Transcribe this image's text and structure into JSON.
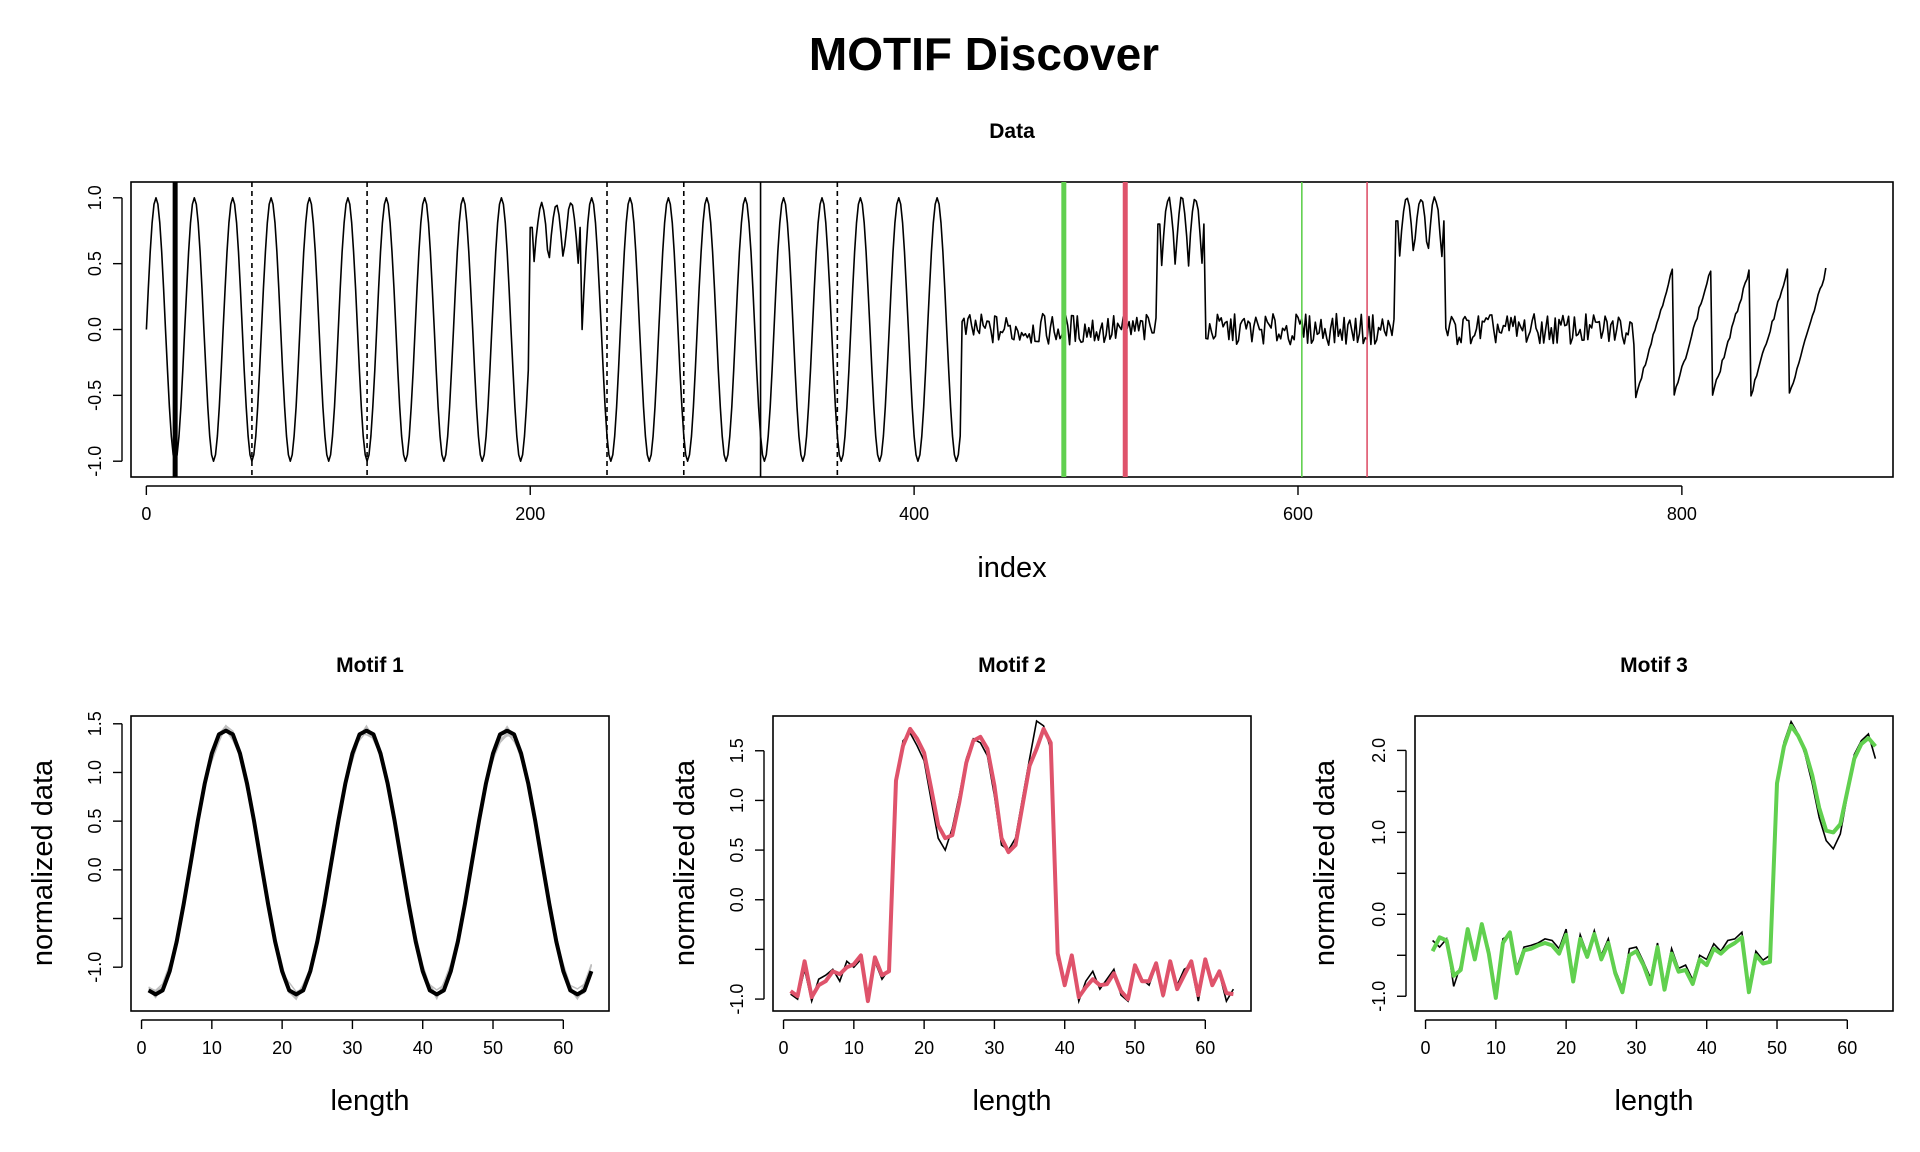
{
  "figure": {
    "title": "MOTIF Discover"
  },
  "colors": {
    "data_line": "#000000",
    "motif1": "#000000",
    "motif2": "#DF536B",
    "motif3": "#61D04F",
    "motif1_members": "#BEBEBE"
  },
  "chart_data": [
    {
      "id": "data",
      "type": "line",
      "title": "Data",
      "xlabel": "index",
      "ylabel": "",
      "xlim": [
        -8,
        910
      ],
      "ylim": [
        -1.12,
        1.12
      ],
      "xticks": [
        0,
        200,
        400,
        600,
        800
      ],
      "yticks": [
        -1.0,
        -0.5,
        0.0,
        0.5,
        1.0
      ],
      "xtick_labels": [
        "0",
        "200",
        "400",
        "600",
        "800"
      ],
      "ytick_labels": [
        "-1.0",
        "-0.5",
        "0.0",
        "0.5",
        "1.0"
      ],
      "grid": false,
      "n_points": 876,
      "segments": [
        {
          "shape": "sine",
          "from": 0,
          "to": 200,
          "period": 20,
          "amplitude": 1.0
        },
        {
          "shape": "double_bump",
          "from": 200,
          "to": 227,
          "low": 0.5,
          "high": 0.95
        },
        {
          "shape": "sine",
          "from": 227,
          "to": 425,
          "period": 20,
          "amplitude": 1.0
        },
        {
          "shape": "noise",
          "from": 425,
          "to": 527,
          "level": 0.0,
          "spread": 0.12
        },
        {
          "shape": "double_bump",
          "from": 527,
          "to": 552,
          "low": 0.5,
          "high": 1.0
        },
        {
          "shape": "noise",
          "from": 552,
          "to": 651,
          "level": 0.0,
          "spread": 0.12
        },
        {
          "shape": "double_bump",
          "from": 651,
          "to": 677,
          "low": 0.55,
          "high": 1.0
        },
        {
          "shape": "noise",
          "from": 677,
          "to": 776,
          "level": 0.0,
          "spread": 0.12
        },
        {
          "shape": "sawtooth",
          "from": 776,
          "to": 876,
          "period": 20,
          "min": -0.5,
          "max": 0.5
        }
      ],
      "markers": [
        {
          "x": 15,
          "style": "solid",
          "weight": "thick",
          "color_key": "motif1"
        },
        {
          "x": 55,
          "style": "dashed",
          "weight": "thin",
          "color_key": "motif1"
        },
        {
          "x": 115,
          "style": "dashed",
          "weight": "thin",
          "color_key": "motif1"
        },
        {
          "x": 240,
          "style": "dashed",
          "weight": "thin",
          "color_key": "motif1"
        },
        {
          "x": 280,
          "style": "dashed",
          "weight": "thin",
          "color_key": "motif1"
        },
        {
          "x": 320,
          "style": "solid",
          "weight": "thin",
          "color_key": "motif1"
        },
        {
          "x": 360,
          "style": "dashed",
          "weight": "thin",
          "color_key": "motif1"
        },
        {
          "x": 478,
          "style": "solid",
          "weight": "thick",
          "color_key": "motif3"
        },
        {
          "x": 510,
          "style": "solid",
          "weight": "thick",
          "color_key": "motif2"
        },
        {
          "x": 602,
          "style": "solid",
          "weight": "thin",
          "color_key": "motif3"
        },
        {
          "x": 636,
          "style": "solid",
          "weight": "thin",
          "color_key": "motif2"
        }
      ]
    },
    {
      "id": "motif1",
      "type": "line",
      "title": "Motif 1",
      "xlabel": "length",
      "ylabel": "normalized data",
      "xlim": [
        -1.5,
        66.5
      ],
      "ylim": [
        -1.45,
        1.58
      ],
      "xticks": [
        0,
        10,
        20,
        30,
        40,
        50,
        60
      ],
      "yticks": [
        -1.0,
        0.0,
        0.5,
        1.0,
        1.5
      ],
      "xtick_labels": [
        "0",
        "10",
        "20",
        "30",
        "40",
        "50",
        "60"
      ],
      "ytick_labels": [
        "-1.0",
        "0.0",
        "0.5",
        "1.0",
        "1.5"
      ],
      "extra_yticks_unlabeled": [
        -0.5
      ],
      "grid": false,
      "n_points": 64,
      "period": 20,
      "peak": 1.43,
      "trough": -1.28,
      "color_key": "motif1"
    },
    {
      "id": "motif2",
      "type": "line",
      "title": "Motif 2",
      "xlabel": "length",
      "ylabel": "normalized data",
      "xlim": [
        -1.5,
        66.5
      ],
      "ylim": [
        -1.12,
        1.85
      ],
      "xticks": [
        0,
        10,
        20,
        30,
        40,
        50,
        60
      ],
      "yticks": [
        -1.0,
        0.0,
        0.5,
        1.0,
        1.5
      ],
      "xtick_labels": [
        "0",
        "10",
        "20",
        "30",
        "40",
        "50",
        "60"
      ],
      "ytick_labels": [
        "-1.0",
        "0.0",
        "0.5",
        "1.0",
        "1.5"
      ],
      "extra_yticks_unlabeled": [
        -0.5
      ],
      "grid": false,
      "color_key": "motif2",
      "series": [
        {
          "role": "center",
          "color_key": "motif2",
          "values": [
            -0.92,
            -0.97,
            -0.62,
            -0.98,
            -0.86,
            -0.82,
            -0.72,
            -0.75,
            -0.68,
            -0.65,
            -0.56,
            -1.02,
            -0.58,
            -0.76,
            -0.72,
            1.2,
            1.55,
            1.72,
            1.62,
            1.48,
            1.12,
            0.75,
            0.62,
            0.65,
            0.98,
            1.38,
            1.6,
            1.64,
            1.52,
            1.15,
            0.62,
            0.48,
            0.55,
            0.95,
            1.35,
            1.52,
            1.72,
            1.58,
            -0.54,
            -0.86,
            -0.56,
            -0.98,
            -0.88,
            -0.8,
            -0.86,
            -0.85,
            -0.74,
            -0.92,
            -1.0,
            -0.66,
            -0.82,
            -0.82,
            -0.64,
            -0.96,
            -0.62,
            -0.9,
            -0.76,
            -0.62,
            -0.96,
            -0.6,
            -0.86,
            -0.72,
            -0.94,
            -0.95
          ]
        },
        {
          "role": "member",
          "color_key": "motif1",
          "values": [
            -0.95,
            -1.0,
            -0.7,
            -1.02,
            -0.8,
            -0.76,
            -0.7,
            -0.82,
            -0.62,
            -0.68,
            -0.6,
            -1.0,
            -0.62,
            -0.8,
            -0.7,
            1.15,
            1.6,
            1.68,
            1.55,
            1.4,
            1.0,
            0.62,
            0.5,
            0.72,
            1.05,
            1.42,
            1.62,
            1.58,
            1.45,
            1.05,
            0.55,
            0.5,
            0.62,
            1.02,
            1.42,
            1.8,
            1.75,
            1.52,
            -0.6,
            -0.8,
            -0.62,
            -1.02,
            -0.82,
            -0.72,
            -0.9,
            -0.8,
            -0.7,
            -0.96,
            -1.02,
            -0.7,
            -0.8,
            -0.86,
            -0.66,
            -0.98,
            -0.64,
            -0.86,
            -0.7,
            -0.66,
            -1.02,
            -0.62,
            -0.82,
            -0.74,
            -1.02,
            -0.9
          ]
        }
      ]
    },
    {
      "id": "motif3",
      "type": "line",
      "title": "Motif 3",
      "xlabel": "length",
      "ylabel": "normalized data",
      "xlim": [
        -1.5,
        66.5
      ],
      "ylim": [
        -1.18,
        2.42
      ],
      "xticks": [
        0,
        10,
        20,
        30,
        40,
        50,
        60
      ],
      "yticks": [
        -1.0,
        0.0,
        1.0,
        2.0
      ],
      "xtick_labels": [
        "0",
        "10",
        "20",
        "30",
        "40",
        "50",
        "60"
      ],
      "ytick_labels": [
        "-1.0",
        "0.0",
        "1.0",
        "2.0"
      ],
      "extra_yticks_unlabeled": [
        -0.5,
        0.5,
        1.5
      ],
      "grid": false,
      "color_key": "motif3",
      "series": [
        {
          "role": "center",
          "color_key": "motif3",
          "values": [
            -0.45,
            -0.28,
            -0.32,
            -0.75,
            -0.68,
            -0.18,
            -0.55,
            -0.12,
            -0.48,
            -1.02,
            -0.35,
            -0.22,
            -0.72,
            -0.44,
            -0.42,
            -0.38,
            -0.35,
            -0.38,
            -0.48,
            -0.25,
            -0.82,
            -0.3,
            -0.52,
            -0.24,
            -0.55,
            -0.35,
            -0.72,
            -0.95,
            -0.5,
            -0.45,
            -0.62,
            -0.85,
            -0.4,
            -0.92,
            -0.48,
            -0.7,
            -0.68,
            -0.85,
            -0.55,
            -0.62,
            -0.42,
            -0.48,
            -0.4,
            -0.35,
            -0.28,
            -0.95,
            -0.5,
            -0.6,
            -0.58,
            1.6,
            2.05,
            2.3,
            2.18,
            2.0,
            1.7,
            1.3,
            1.02,
            1.0,
            1.1,
            1.5,
            1.9,
            2.08,
            2.15,
            2.05
          ]
        },
        {
          "role": "member",
          "color_key": "motif1",
          "values": [
            -0.32,
            -0.4,
            -0.3,
            -0.88,
            -0.62,
            -0.22,
            -0.5,
            -0.18,
            -0.42,
            -0.95,
            -0.3,
            -0.25,
            -0.65,
            -0.4,
            -0.38,
            -0.35,
            -0.3,
            -0.32,
            -0.42,
            -0.18,
            -0.75,
            -0.25,
            -0.48,
            -0.2,
            -0.5,
            -0.3,
            -0.68,
            -0.9,
            -0.42,
            -0.4,
            -0.58,
            -0.78,
            -0.35,
            -0.86,
            -0.42,
            -0.66,
            -0.62,
            -0.8,
            -0.5,
            -0.55,
            -0.36,
            -0.45,
            -0.32,
            -0.3,
            -0.22,
            -0.88,
            -0.45,
            -0.56,
            -0.5,
            1.55,
            2.1,
            2.35,
            2.2,
            1.95,
            1.6,
            1.18,
            0.9,
            0.8,
            0.98,
            1.45,
            1.95,
            2.12,
            2.2,
            1.9
          ]
        }
      ]
    }
  ]
}
